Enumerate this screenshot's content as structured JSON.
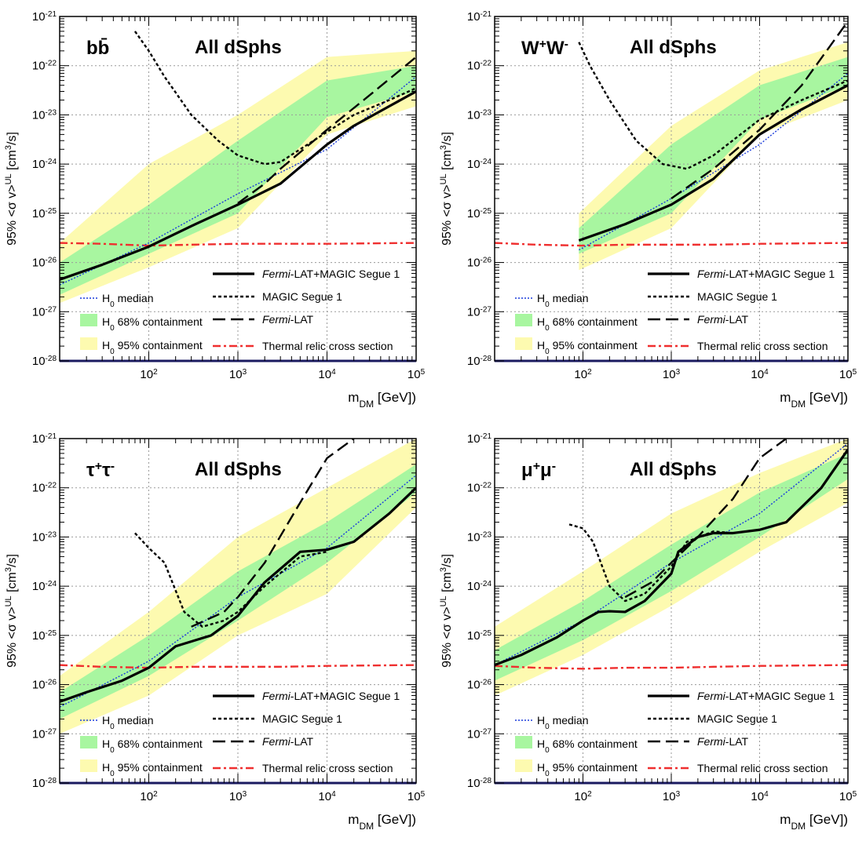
{
  "chart_data": [
    {
      "type": "line",
      "channel_label": "b",
      "channel_sup": "",
      "channel_label2": "b̄",
      "channel_sup2": "",
      "region_label": "All dSphs",
      "xlabel": "m",
      "xlabel_sub": "DM",
      "xlabel_unit": " [GeV])",
      "ylabel": "95% <σ v>",
      "ylabel_sup": "UL",
      "ylabel_unit": " [cm",
      "ylabel_unit_sup": "3",
      "ylabel_unit_end": "/s]",
      "xscale": "log",
      "yscale": "log",
      "xlim": [
        10,
        100000
      ],
      "ylim": [
        1e-28,
        1e-21
      ],
      "x_ticks": [
        "10^2",
        "10^3",
        "10^4",
        "10^5"
      ],
      "y_ticks": [
        "10^-28",
        "10^-27",
        "10^-26",
        "10^-25",
        "10^-24",
        "10^-23",
        "10^-22",
        "10^-21"
      ],
      "grid": true,
      "legend_left_placement": "bottom-left",
      "legend_right_placement": "bottom-right",
      "band95": {
        "x": [
          10,
          100,
          1000,
          10000,
          100000
        ],
        "lo": [
          1.5e-27,
          8e-27,
          5e-26,
          4e-24,
          1.5e-23
        ],
        "hi": [
          2.5e-26,
          1e-24,
          1e-23,
          1.5e-22,
          2e-22
        ]
      },
      "band68": {
        "x": [
          10,
          100,
          1000,
          10000,
          100000
        ],
        "lo": [
          2.2e-27,
          1.5e-26,
          1e-25,
          9e-24,
          3e-23
        ],
        "hi": [
          1e-26,
          1.5e-25,
          3e-24,
          5e-23,
          1e-22
        ]
      },
      "series": [
        {
          "name": "Fermi-LAT+MAGIC Segue 1",
          "style": "solid",
          "x": [
            10,
            30,
            100,
            300,
            1000,
            3000,
            10000,
            20000,
            50000,
            100000
          ],
          "y": [
            4.5e-27,
            9e-27,
            2.1e-26,
            5.5e-26,
            1.5e-25,
            4e-25,
            2.5e-24,
            6e-24,
            1.5e-23,
            3e-23
          ]
        },
        {
          "name": "MAGIC Segue 1",
          "style": "dotted",
          "x": [
            70,
            100,
            150,
            300,
            600,
            1000,
            2000,
            3000,
            5000,
            10000,
            20000,
            50000,
            100000
          ],
          "y": [
            5e-22,
            2e-22,
            6e-23,
            1e-23,
            3e-24,
            1.5e-24,
            1e-24,
            1.1e-24,
            2e-24,
            4.5e-24,
            1e-23,
            2e-23,
            3.5e-23
          ]
        },
        {
          "name": "Fermi-LAT",
          "style": "dashed",
          "x": [
            1000,
            2000,
            3000,
            10000,
            30000,
            100000
          ],
          "y": [
            1.6e-25,
            4e-25,
            8e-25,
            5e-24,
            2.5e-23,
            1.5e-22
          ]
        },
        {
          "name": "H0 median",
          "style": "blue-dotted",
          "x": [
            10,
            100,
            1000,
            10000,
            100000
          ],
          "y": [
            3.5e-27,
            2.5e-26,
            2.5e-25,
            2e-24,
            6e-23
          ]
        },
        {
          "name": "Thermal relic cross section",
          "style": "red-dashdot",
          "x": [
            10,
            30,
            100,
            300,
            1000,
            3000,
            10000,
            100000
          ],
          "y": [
            2.5e-26,
            2.4e-26,
            2.2e-26,
            2.3e-26,
            2.4e-26,
            2.4e-26,
            2.4e-26,
            2.5e-26
          ]
        }
      ]
    },
    {
      "type": "line",
      "channel_label": "W",
      "channel_sup": "+",
      "channel_label2": "W",
      "channel_sup2": "-",
      "region_label": "All dSphs",
      "xlabel": "m",
      "xlabel_sub": "DM",
      "xlabel_unit": " [GeV])",
      "ylabel": "95% <σ v>",
      "ylabel_sup": "UL",
      "ylabel_unit": " [cm",
      "ylabel_unit_sup": "3",
      "ylabel_unit_end": "/s]",
      "xscale": "log",
      "yscale": "log",
      "xlim": [
        10,
        100000
      ],
      "ylim": [
        1e-28,
        1e-21
      ],
      "x_ticks": [
        "10^2",
        "10^3",
        "10^4",
        "10^5"
      ],
      "y_ticks": [
        "10^-28",
        "10^-27",
        "10^-26",
        "10^-25",
        "10^-24",
        "10^-23",
        "10^-22",
        "10^-21"
      ],
      "grid": true,
      "legend_left_placement": "bottom-left",
      "legend_right_placement": "bottom-right",
      "band95": {
        "x": [
          90,
          1000,
          10000,
          100000
        ],
        "lo": [
          7e-27,
          5e-26,
          4e-24,
          2e-23
        ],
        "hi": [
          1e-25,
          6e-24,
          8e-23,
          3e-22
        ]
      },
      "band68": {
        "x": [
          90,
          1000,
          10000,
          100000
        ],
        "lo": [
          1.5e-26,
          1e-25,
          8e-24,
          4e-23
        ],
        "hi": [
          5e-26,
          2.5e-24,
          4e-23,
          1.5e-22
        ]
      },
      "series": [
        {
          "name": "Fermi-LAT+MAGIC Segue 1",
          "style": "solid",
          "x": [
            90,
            300,
            1000,
            3000,
            10000,
            30000,
            100000
          ],
          "y": [
            2.8e-26,
            6e-26,
            1.5e-25,
            5e-25,
            4e-24,
            1.3e-23,
            4e-23
          ]
        },
        {
          "name": "MAGIC Segue 1",
          "style": "dotted",
          "x": [
            90,
            120,
            200,
            400,
            800,
            1500,
            3000,
            10000,
            30000,
            100000
          ],
          "y": [
            3e-22,
            1e-22,
            2e-23,
            3e-24,
            1e-24,
            8e-25,
            1.5e-24,
            8e-24,
            2e-23,
            5e-23
          ]
        },
        {
          "name": "Fermi-LAT",
          "style": "dashed",
          "x": [
            1000,
            3000,
            10000,
            30000,
            100000
          ],
          "y": [
            2e-25,
            8e-25,
            5e-24,
            4e-23,
            8e-22
          ]
        },
        {
          "name": "H0 median",
          "style": "blue-dotted",
          "x": [
            90,
            1000,
            10000,
            100000
          ],
          "y": [
            1.8e-26,
            2e-25,
            2.5e-24,
            7e-23
          ]
        },
        {
          "name": "Thermal relic cross section",
          "style": "red-dashdot",
          "x": [
            10,
            30,
            100,
            300,
            1000,
            3000,
            10000,
            100000
          ],
          "y": [
            2.5e-26,
            2.3e-26,
            2.2e-26,
            2.3e-26,
            2.3e-26,
            2.3e-26,
            2.4e-26,
            2.5e-26
          ]
        }
      ]
    },
    {
      "type": "line",
      "channel_label": "τ",
      "channel_sup": "+",
      "channel_label2": "τ",
      "channel_sup2": "-",
      "region_label": "All dSphs",
      "xlabel": "m",
      "xlabel_sub": "DM",
      "xlabel_unit": " [GeV])",
      "ylabel": "95% <σ v>",
      "ylabel_sup": "UL",
      "ylabel_unit": " [cm",
      "ylabel_unit_sup": "3",
      "ylabel_unit_end": "/s]",
      "xscale": "log",
      "yscale": "log",
      "xlim": [
        10,
        100000
      ],
      "ylim": [
        1e-28,
        1e-21
      ],
      "x_ticks": [
        "10^2",
        "10^3",
        "10^4",
        "10^5"
      ],
      "y_ticks": [
        "10^-28",
        "10^-27",
        "10^-26",
        "10^-25",
        "10^-24",
        "10^-23",
        "10^-22",
        "10^-21"
      ],
      "grid": true,
      "legend_left_placement": "bottom-left",
      "legend_right_placement": "bottom-right",
      "band95": {
        "x": [
          10,
          100,
          1000,
          10000,
          100000
        ],
        "lo": [
          1e-27,
          6e-27,
          1e-25,
          7e-25,
          4e-23
        ],
        "hi": [
          1.5e-26,
          3e-25,
          1e-23,
          1e-22,
          1e-21
        ]
      },
      "band68": {
        "x": [
          10,
          100,
          1000,
          10000,
          100000
        ],
        "lo": [
          2e-27,
          1.5e-26,
          2e-25,
          3e-24,
          8e-23
        ],
        "hi": [
          7e-27,
          1e-25,
          2e-24,
          2e-23,
          3e-22
        ]
      },
      "series": [
        {
          "name": "Fermi-LAT+MAGIC Segue 1",
          "style": "solid",
          "x": [
            10,
            20,
            50,
            100,
            200,
            500,
            1000,
            2000,
            5000,
            10000,
            20000,
            50000,
            100000
          ],
          "y": [
            4.5e-27,
            7e-27,
            1.2e-26,
            2.2e-26,
            6e-26,
            1e-25,
            2.5e-25,
            1.2e-24,
            5e-24,
            5.5e-24,
            8e-24,
            3e-23,
            1e-22
          ]
        },
        {
          "name": "MAGIC Segue 1",
          "style": "dotted",
          "x": [
            70,
            100,
            150,
            250,
            400,
            700,
            1000,
            2000,
            5000,
            10000
          ],
          "y": [
            1.2e-23,
            6e-24,
            3e-24,
            3e-25,
            1.5e-25,
            2e-25,
            3e-25,
            1e-24,
            4e-24,
            5e-24
          ]
        },
        {
          "name": "Fermi-LAT",
          "style": "dashed",
          "x": [
            300,
            700,
            1000,
            2000,
            5000,
            10000,
            20000
          ],
          "y": [
            1.5e-25,
            3e-25,
            6e-25,
            3e-24,
            5e-23,
            4e-22,
            1e-21
          ]
        },
        {
          "name": "H0 median",
          "style": "blue-dotted",
          "x": [
            10,
            100,
            1000,
            10000,
            100000
          ],
          "y": [
            3.5e-27,
            3e-26,
            6e-25,
            6e-24,
            1.8e-22
          ]
        },
        {
          "name": "Thermal relic cross section",
          "style": "red-dashdot",
          "x": [
            10,
            30,
            100,
            300,
            1000,
            3000,
            10000,
            100000
          ],
          "y": [
            2.5e-26,
            2.3e-26,
            2.2e-26,
            2.3e-26,
            2.3e-26,
            2.3e-26,
            2.4e-26,
            2.5e-26
          ]
        }
      ]
    },
    {
      "type": "line",
      "channel_label": "μ",
      "channel_sup": "+",
      "channel_label2": "μ",
      "channel_sup2": "-",
      "region_label": "All dSphs",
      "xlabel": "m",
      "xlabel_sub": "DM",
      "xlabel_unit": " [GeV])",
      "ylabel": "95% <σ v>",
      "ylabel_sup": "UL",
      "ylabel_unit": " [cm",
      "ylabel_unit_sup": "3",
      "ylabel_unit_end": "/s]",
      "xscale": "log",
      "yscale": "log",
      "xlim": [
        10,
        100000
      ],
      "ylim": [
        1e-28,
        1e-21
      ],
      "x_ticks": [
        "10^2",
        "10^3",
        "10^4",
        "10^5"
      ],
      "y_ticks": [
        "10^-28",
        "10^-27",
        "10^-26",
        "10^-25",
        "10^-24",
        "10^-23",
        "10^-22",
        "10^-21"
      ],
      "grid": true,
      "legend_left_placement": "bottom-left",
      "legend_right_placement": "bottom-right",
      "band95": {
        "x": [
          10,
          100,
          1000,
          10000,
          100000
        ],
        "lo": [
          6e-27,
          4e-26,
          4e-25,
          5e-24,
          5e-23
        ],
        "hi": [
          1.5e-25,
          2e-24,
          3e-23,
          2e-22,
          1e-21
        ]
      },
      "band68": {
        "x": [
          10,
          100,
          1000,
          10000,
          100000
        ],
        "lo": [
          1.2e-26,
          8e-26,
          8e-25,
          1e-23,
          1.5e-22
        ],
        "hi": [
          5e-26,
          5e-25,
          7e-24,
          8e-23,
          5e-22
        ]
      },
      "series": [
        {
          "name": "Fermi-LAT+MAGIC Segue 1",
          "style": "solid",
          "x": [
            10,
            20,
            50,
            100,
            150,
            200,
            300,
            500,
            1000,
            1200,
            2000,
            3000,
            5000,
            10000,
            20000,
            50000,
            100000
          ],
          "y": [
            2.5e-26,
            4e-26,
            9e-26,
            2e-25,
            3e-25,
            3.1e-25,
            3e-25,
            5e-25,
            1.8e-24,
            5e-24,
            1e-23,
            1.2e-23,
            1.2e-23,
            1.4e-23,
            2e-23,
            1e-22,
            6e-22
          ]
        },
        {
          "name": "MAGIC Segue 1",
          "style": "dotted",
          "x": [
            70,
            100,
            130,
            200,
            300,
            500,
            1000,
            1500,
            3000,
            5000
          ],
          "y": [
            1.8e-23,
            1.5e-23,
            8e-24,
            1e-24,
            5e-25,
            7e-25,
            2.5e-24,
            8e-24,
            1.3e-23,
            1.2e-23
          ]
        },
        {
          "name": "Fermi-LAT",
          "style": "dashed",
          "x": [
            300,
            600,
            1000,
            2000,
            5000,
            10000,
            20000
          ],
          "y": [
            6e-25,
            1.2e-24,
            3e-24,
            1e-23,
            6e-23,
            4e-22,
            1e-21
          ]
        },
        {
          "name": "H0 median",
          "style": "blue-dotted",
          "x": [
            10,
            100,
            1000,
            10000,
            100000
          ],
          "y": [
            2.5e-26,
            2e-25,
            3e-24,
            3e-23,
            8e-22
          ]
        },
        {
          "name": "Thermal relic cross section",
          "style": "red-dashdot",
          "x": [
            10,
            30,
            100,
            300,
            1000,
            3000,
            10000,
            100000
          ],
          "y": [
            2.4e-26,
            2.2e-26,
            2.1e-26,
            2.2e-26,
            2.2e-26,
            2.3e-26,
            2.4e-26,
            2.5e-26
          ]
        }
      ]
    }
  ],
  "legend_labels": {
    "combined_prefix": "Fermi",
    "combined_suffix": "-LAT+MAGIC Segue 1",
    "magic": "MAGIC Segue 1",
    "fermi_prefix": "Fermi",
    "fermi_suffix": "-LAT",
    "median_H": "H",
    "median_sub": "0",
    "median_rest": " median",
    "c68_H": "H",
    "c68_sub": "0",
    "c68_rest": " 68% containment",
    "c95_H": "H",
    "c95_sub": "0",
    "c95_rest": " 95% containment",
    "thermal": "Thermal relic cross section"
  },
  "colors": {
    "band95": "#fdfab0",
    "band68": "#a8f6a0",
    "median": "#1a3cdc",
    "thermal": "#ef2f2f",
    "grid": "#9a9a9a",
    "bottom_axis": "#1a1a60"
  }
}
